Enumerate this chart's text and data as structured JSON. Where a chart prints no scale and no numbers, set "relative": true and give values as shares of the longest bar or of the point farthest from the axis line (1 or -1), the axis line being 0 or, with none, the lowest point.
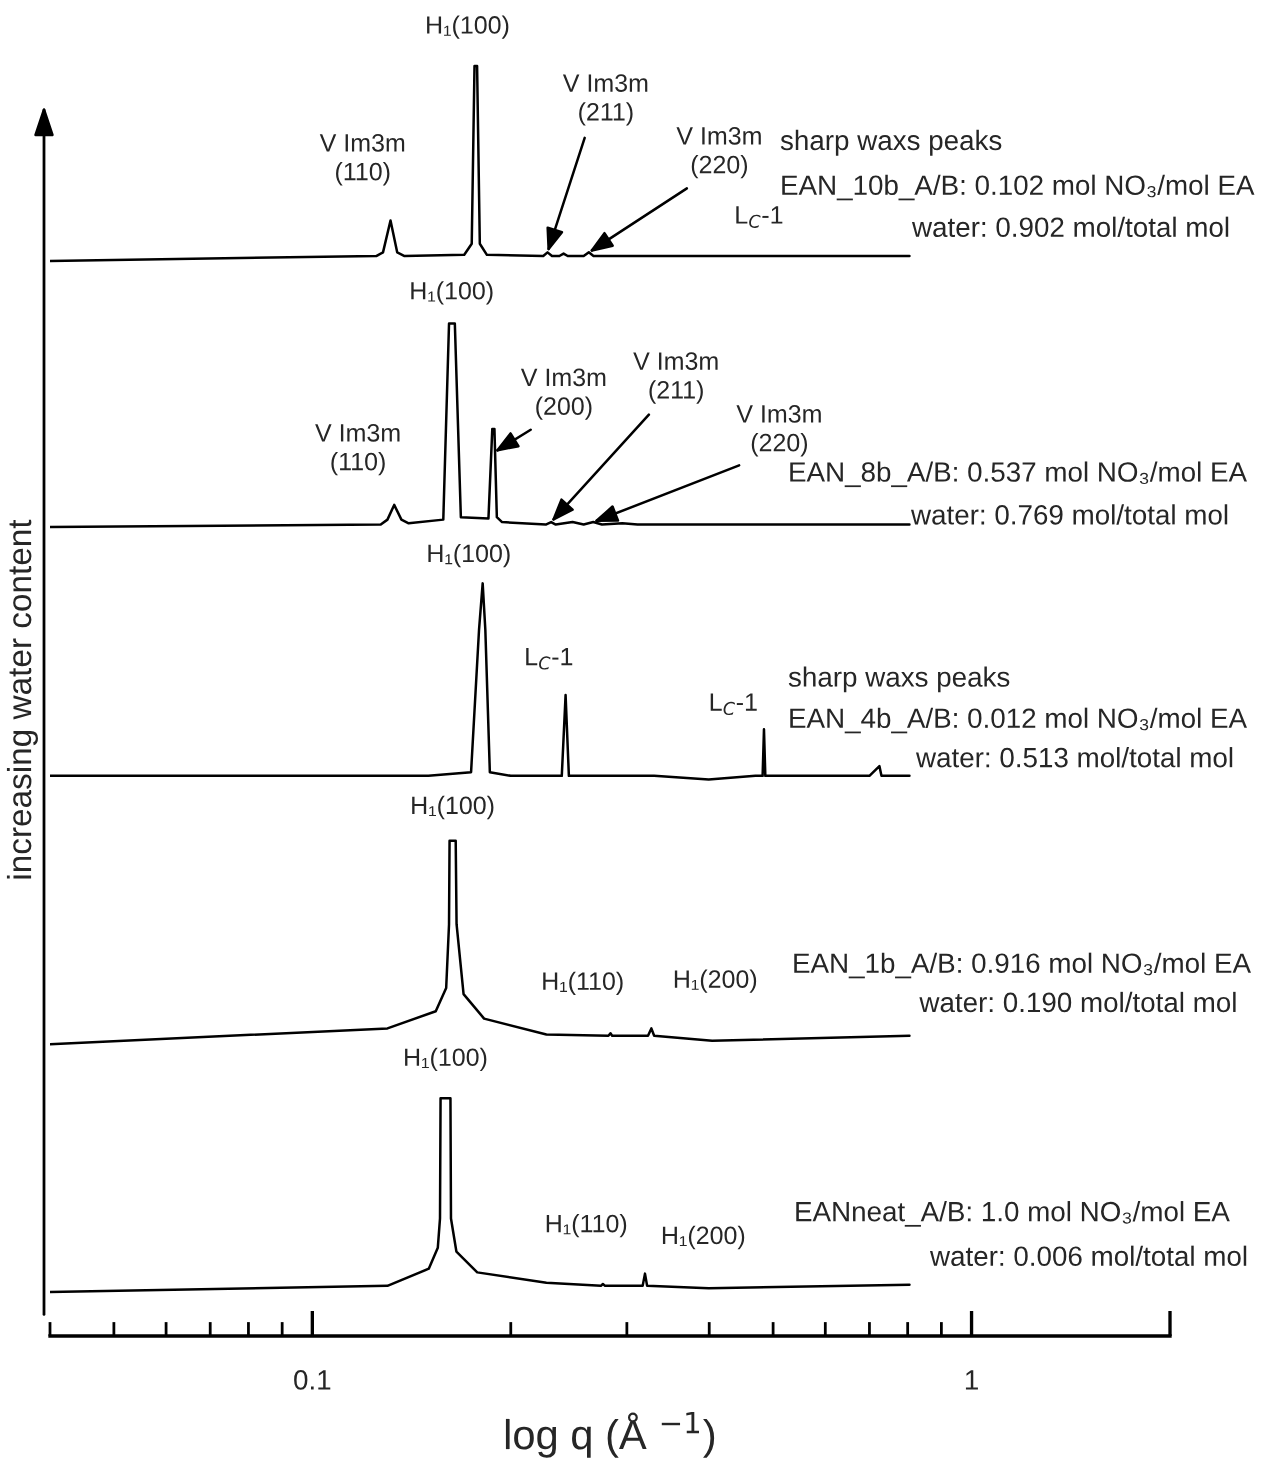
{
  "chart_data": {
    "type": "line",
    "relative": true,
    "log": "x",
    "xlabel": "log q (Å $^{−1}$)",
    "ylabel": "increasing water content",
    "xlim": [
      0.04,
      2
    ],
    "xticks": [
      0.1,
      1,
      {
        "value": 2,
        "label": null
      }
    ],
    "series": [
      {
        "color": "#000000",
        "x": [
          0.04,
          0.125,
          0.128,
          0.1314,
          0.1345,
          0.138,
          0.17,
          0.1745,
          0.1762,
          0.1778,
          0.1795,
          0.184,
          0.224,
          0.2274,
          0.231,
          0.237,
          0.2405,
          0.244,
          0.258,
          0.2627,
          0.267,
          0.4,
          0.805
        ],
        "values": [
          0.841,
          0.845,
          0.848,
          0.874,
          0.848,
          0.845,
          0.846,
          0.855,
          1.0,
          1.0,
          0.855,
          0.846,
          0.845,
          0.848,
          0.845,
          0.845,
          0.847,
          0.845,
          0.845,
          0.848,
          0.845,
          0.845,
          0.845
        ]
      },
      {
        "color": "#000000",
        "x": [
          0.04,
          0.127,
          0.13,
          0.1331,
          0.1365,
          0.14,
          0.158,
          0.1612,
          0.162,
          0.1635,
          0.1645,
          0.168,
          0.185,
          0.1875,
          0.1889,
          0.1905,
          0.194,
          0.226,
          0.2303,
          0.234,
          0.2482,
          0.258,
          0.2668,
          0.275,
          0.2953,
          0.3114,
          0.805
        ],
        "values": [
          0.624,
          0.626,
          0.63,
          0.642,
          0.63,
          0.627,
          0.63,
          0.79,
          0.79,
          0.79,
          0.79,
          0.632,
          0.631,
          0.704,
          0.704,
          0.632,
          0.628,
          0.626,
          0.628,
          0.626,
          0.628,
          0.626,
          0.628,
          0.626,
          0.627,
          0.626,
          0.626
        ]
      },
      {
        "color": "#000000",
        "x": [
          0.04,
          0.15,
          0.1741,
          0.179,
          0.1813,
          0.183,
          0.1859,
          0.2,
          0.239,
          0.2422,
          0.245,
          0.33,
          0.3993,
          0.47,
          0.482,
          0.4843,
          0.4866,
          0.7,
          0.7248,
          0.73,
          0.805
        ],
        "values": [
          0.421,
          0.421,
          0.424,
          0.54,
          0.578,
          0.54,
          0.424,
          0.421,
          0.421,
          0.487,
          0.421,
          0.421,
          0.418,
          0.421,
          0.421,
          0.459,
          0.421,
          0.421,
          0.429,
          0.421,
          0.421
        ]
      },
      {
        "color": "#000000",
        "x": [
          0.04,
          0.13,
          0.1539,
          0.1596,
          0.1612,
          0.1615,
          0.165,
          0.1655,
          0.1696,
          0.1822,
          0.2265,
          0.2813,
          0.2833,
          0.285,
          0.323,
          0.3268,
          0.33,
          0.4041,
          0.805
        ],
        "values": [
          0.202,
          0.215,
          0.229,
          0.248,
          0.3,
          0.368,
          0.368,
          0.3,
          0.243,
          0.223,
          0.21,
          0.209,
          0.211,
          0.209,
          0.209,
          0.215,
          0.209,
          0.205,
          0.209
        ]
      },
      {
        "color": "#000000",
        "x": [
          0.04,
          0.13,
          0.1502,
          0.155,
          0.1562,
          0.1565,
          0.162,
          0.1623,
          0.1654,
          0.1779,
          0.2265,
          0.274,
          0.2759,
          0.278,
          0.317,
          0.3196,
          0.322,
          0.3993,
          0.805
        ],
        "values": [
          0.0,
          0.005,
          0.019,
          0.036,
          0.06,
          0.158,
          0.158,
          0.06,
          0.033,
          0.016,
          0.0075,
          0.005,
          0.0065,
          0.005,
          0.005,
          0.015,
          0.005,
          0.003,
          0.006
        ]
      }
    ],
    "annotations": [
      {
        "text": "H₁(100)",
        "x": 0.177,
        "y": 1.0
      },
      {
        "text": "V Im3m\n(110)",
        "x": 0.1314,
        "y": 0.874
      },
      {
        "text": "V Im3m\n(211)",
        "x": 0.2274,
        "y": 0.848
      },
      {
        "text": "V Im3m\n(220)",
        "x": 0.2627,
        "y": 0.848
      },
      {
        "text": "L$_{C}$-1",
        "x": 0.476,
        "y": 0.845
      },
      {
        "text": "H₁(100)",
        "x": 0.1627,
        "y": 0.79
      },
      {
        "text": "V Im3m\n(110)",
        "x": 0.1331,
        "y": 0.642
      },
      {
        "text": "V Im3m\n(200)",
        "x": 0.1889,
        "y": 0.685
      },
      {
        "text": "V Im3m\n(211)",
        "x": 0.2303,
        "y": 0.628
      },
      {
        "text": "V Im3m\n(220)",
        "x": 0.2668,
        "y": 0.628
      },
      {
        "text": "H₁(100)",
        "x": 0.1813,
        "y": 0.578
      },
      {
        "text": "L$_{C}$-1",
        "x": 0.2422,
        "y": 0.487
      },
      {
        "text": "L$_{C}$-1",
        "x": 0.4843,
        "y": 0.459
      },
      {
        "text": "H₁(100)",
        "x": 0.1632,
        "y": 0.368
      },
      {
        "text": "H₁(110)",
        "x": 0.2833,
        "y": 0.211
      },
      {
        "text": "H₁(200)",
        "x": 0.3268,
        "y": 0.215
      },
      {
        "text": "H₁(100)",
        "x": 0.1592,
        "y": 0.158
      },
      {
        "text": "H₁(110)",
        "x": 0.2759,
        "y": 0.0065
      },
      {
        "text": "H₁(200)",
        "x": 0.3196,
        "y": 0.015
      },
      "sharp waxs peaks",
      "EAN_10b_A/B: 0.102 mol NO₃/mol EA",
      "water: 0.902 mol/total mol",
      "EAN_8b_A/B: 0.537 mol NO₃/mol EA",
      "water: 0.769 mol/total mol",
      "sharp waxs peaks",
      "EAN_4b_A/B: 0.012 mol NO₃/mol EA",
      "water: 0.513 mol/total mol",
      "EAN_1b_A/B: 0.916 mol NO₃/mol EA",
      "water: 0.190 mol/total mol",
      "EANneat_A/B: 1.0 mol NO₃/mol EA",
      "water: 0.006 mol/total mol"
    ]
  }
}
